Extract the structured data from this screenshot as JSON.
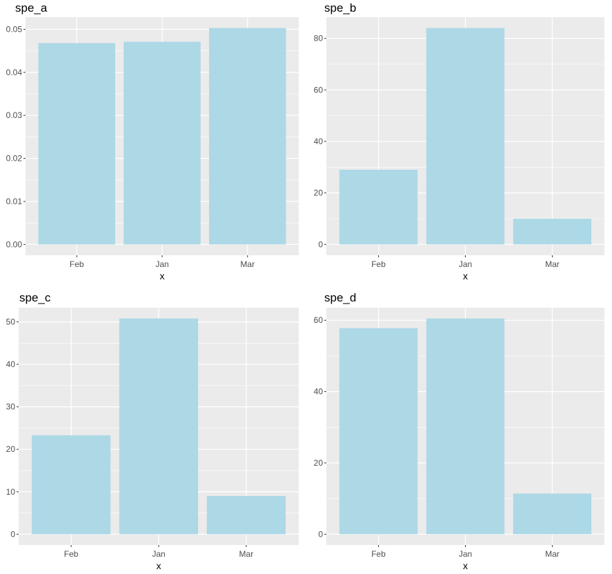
{
  "chart_data": [
    {
      "type": "bar",
      "title": "spe_a",
      "xlabel": "x",
      "ylabel": "",
      "categories": [
        "Feb",
        "Jan",
        "Mar"
      ],
      "values": [
        0.0468,
        0.0471,
        0.0503
      ],
      "ylim": [
        -0.0025,
        0.0528
      ],
      "yticks": [
        0.0,
        0.01,
        0.02,
        0.03,
        0.04,
        0.05
      ],
      "ytick_labels": [
        "0.00",
        "0.01",
        "0.02",
        "0.03",
        "0.04",
        "0.05"
      ],
      "grid": true,
      "legend": "none",
      "bar_color": "#add8e6"
    },
    {
      "type": "bar",
      "title": "spe_b",
      "xlabel": "x",
      "ylabel": "",
      "categories": [
        "Feb",
        "Jan",
        "Mar"
      ],
      "values": [
        29,
        84,
        10
      ],
      "ylim": [
        -4.2,
        88.2
      ],
      "yticks": [
        0,
        20,
        40,
        60,
        80
      ],
      "ytick_labels": [
        "0",
        "20",
        "40",
        "60",
        "80"
      ],
      "grid": true,
      "legend": "none",
      "bar_color": "#add8e6"
    },
    {
      "type": "bar",
      "title": "spe_c",
      "xlabel": "x",
      "ylabel": "",
      "categories": [
        "Feb",
        "Jan",
        "Mar"
      ],
      "values": [
        23.3,
        50.8,
        9
      ],
      "ylim": [
        -2.54,
        53.34
      ],
      "yticks": [
        0,
        10,
        20,
        30,
        40,
        50
      ],
      "ytick_labels": [
        "0",
        "10",
        "20",
        "30",
        "40",
        "50"
      ],
      "grid": true,
      "legend": "none",
      "bar_color": "#add8e6"
    },
    {
      "type": "bar",
      "title": "spe_d",
      "xlabel": "x",
      "ylabel": "",
      "categories": [
        "Feb",
        "Jan",
        "Mar"
      ],
      "values": [
        57.8,
        60.5,
        11.4
      ],
      "ylim": [
        -3.03,
        63.53
      ],
      "yticks": [
        0,
        20,
        40,
        60
      ],
      "ytick_labels": [
        "0",
        "20",
        "40",
        "60"
      ],
      "grid": true,
      "legend": "none",
      "bar_color": "#add8e6"
    }
  ]
}
